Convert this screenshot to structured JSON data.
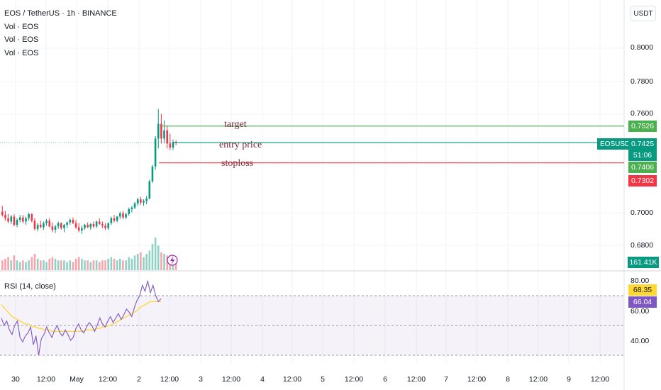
{
  "legend": {
    "title": "EOS / TetherUS · 1h · BINANCE",
    "vol_lines": [
      "Vol · EOS",
      "Vol · EOS",
      "Vol · EOS"
    ]
  },
  "price_axis": {
    "currency": "USDT",
    "ticks": [
      "0.8000",
      "0.7800",
      "0.7600",
      "0.7000",
      "0.6800"
    ],
    "target_value": "0.7526",
    "current_price": "0.7425",
    "countdown": "51:06",
    "entry_value": "0.7406",
    "stop_value": "0.7302",
    "volume_value": "161.41K",
    "symbol": "EOSUSDT"
  },
  "annotations": {
    "target": "target",
    "entry": "entry price",
    "stop": "stoploss"
  },
  "rsi": {
    "label": "RSI (14, close)",
    "ticks": [
      "80.00",
      "60.00",
      "40.00"
    ],
    "rsi_value": "68.35",
    "ma_value": "66.04"
  },
  "time_axis": [
    "30",
    "12:00",
    "May",
    "12:00",
    "2",
    "12:00",
    "3",
    "12:00",
    "4",
    "12:00",
    "5",
    "12:00",
    "6",
    "12:00",
    "7",
    "12:00",
    "8",
    "12:00",
    "9",
    "12:00"
  ],
  "colors": {
    "up": "#089981",
    "down": "#f23645",
    "target_line": "#4caf50",
    "stop_line": "#f23645",
    "rsi_line": "#7e57c2",
    "rsi_ma": "#fdd835",
    "symbol_badge": "#089981"
  },
  "chart_data": {
    "type": "candlestick",
    "ylim": [
      0.668,
      0.812
    ],
    "price_levels": {
      "target": 0.7526,
      "entry": 0.7406,
      "stoploss": 0.7302,
      "current": 0.7425
    },
    "rsi_ylim": [
      30,
      82
    ],
    "rsi_bands": [
      70,
      50,
      30
    ]
  }
}
